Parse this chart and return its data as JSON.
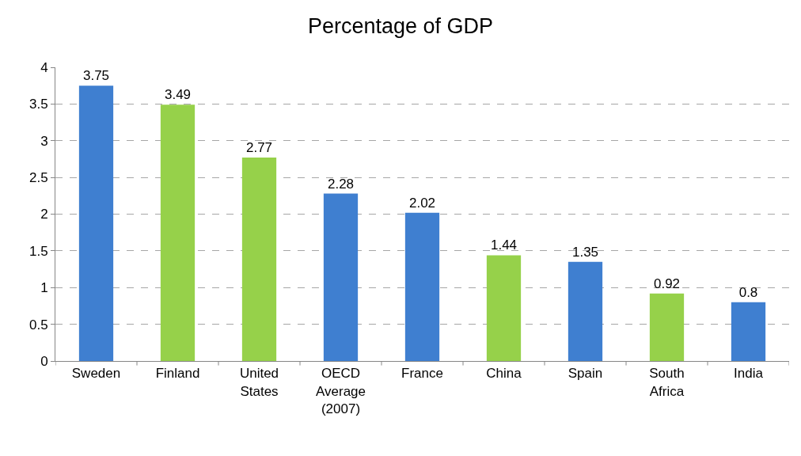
{
  "chart_data": {
    "type": "bar",
    "title": "Percentage of GDP",
    "categories": [
      "Sweden",
      "Finland",
      "United States",
      "OECD Average (2007)",
      "France",
      "China",
      "Spain",
      "South Africa",
      "India"
    ],
    "values": [
      3.75,
      3.49,
      2.77,
      2.28,
      2.02,
      1.44,
      1.35,
      0.92,
      0.8
    ],
    "colors": [
      "#3f7fd0",
      "#96d14a",
      "#96d14a",
      "#3f7fd0",
      "#3f7fd0",
      "#96d14a",
      "#3f7fd0",
      "#96d14a",
      "#3f7fd0"
    ],
    "ylim": [
      0,
      4
    ],
    "yticks": [
      0,
      0.5,
      1,
      1.5,
      2,
      2.5,
      3,
      3.5,
      4
    ],
    "grid": "y",
    "data_labels": true
  }
}
